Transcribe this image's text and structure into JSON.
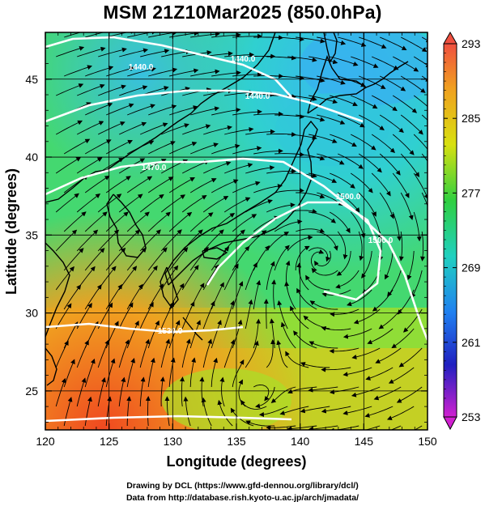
{
  "title": "MSM 21Z10Mar2025 (850.0hPa)",
  "x_axis": {
    "label": "Longitude (degrees)",
    "ticks": [
      "120",
      "125",
      "130",
      "135",
      "140",
      "145",
      "150"
    ]
  },
  "y_axis": {
    "label": "Latitude  (degrees)",
    "ticks": [
      "25",
      "30",
      "35",
      "40",
      "45"
    ]
  },
  "colorbar": {
    "ticks": [
      "293",
      "285",
      "277",
      "269",
      "261",
      "253"
    ],
    "colors": [
      "#f0603a",
      "#e8b818",
      "#a0e010",
      "#30d060",
      "#28c8c8",
      "#28a0ff",
      "#2030d0",
      "#c020d0"
    ]
  },
  "contour_labels": [
    "1440.0",
    "1440.0",
    "1470.0",
    "1500.0",
    "1530.0",
    "1440.0",
    "1500.0"
  ],
  "credits": {
    "line1": "Drawing by DCL (https://www.gfd-dennou.org/library/dcl/)",
    "line2": "Data from http://database.rish.kyoto-u.ac.jp/arch/jmadata/"
  }
}
